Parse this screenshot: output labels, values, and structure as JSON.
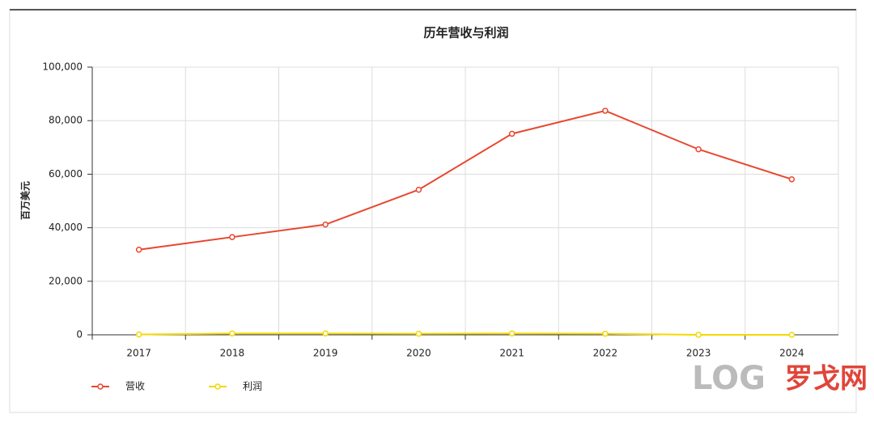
{
  "chart_data": {
    "type": "line",
    "title": "历年营收与利润",
    "y_label": "百万美元",
    "categories": [
      "2017",
      "2018",
      "2019",
      "2020",
      "2021",
      "2022",
      "2023",
      "2024"
    ],
    "series": [
      {
        "name": "营收",
        "color": "#e8472f",
        "values": [
          31800,
          36500,
          41200,
          54200,
          75100,
          83700,
          69300,
          58100
        ]
      },
      {
        "name": "利润",
        "color": "#f5d800",
        "values": [
          100,
          500,
          500,
          400,
          500,
          400,
          0,
          0
        ]
      }
    ],
    "ylim": [
      0,
      100000
    ],
    "yticks": [
      0,
      {
        "value": 20000,
        "label": "20,000"
      },
      {
        "value": 40000,
        "label": "40,000"
      },
      {
        "value": 60000,
        "label": "60,000"
      },
      {
        "value": 80000,
        "label": "80,000"
      },
      {
        "value": 100000,
        "label": "100,000"
      }
    ],
    "grid": true,
    "legend": "bottom-left",
    "watermark": {
      "logo": "LOG",
      "name": "罗戈网"
    }
  }
}
